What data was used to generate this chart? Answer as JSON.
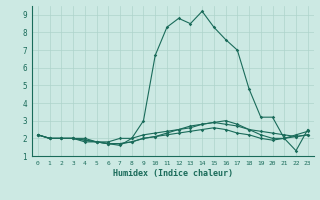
{
  "xlabel": "Humidex (Indice chaleur)",
  "ylabel": "",
  "bg_color": "#cce9e3",
  "grid_color": "#aed4cc",
  "line_color": "#1a6b5a",
  "xlim": [
    -0.5,
    23.5
  ],
  "ylim": [
    1,
    9.5
  ],
  "yticks": [
    1,
    2,
    3,
    4,
    5,
    6,
    7,
    8,
    9
  ],
  "xticks": [
    0,
    1,
    2,
    3,
    4,
    5,
    6,
    7,
    8,
    9,
    10,
    11,
    12,
    13,
    14,
    15,
    16,
    17,
    18,
    19,
    20,
    21,
    22,
    23
  ],
  "series": [
    [
      2.2,
      2.0,
      2.0,
      2.0,
      1.8,
      1.8,
      1.7,
      1.6,
      2.0,
      3.0,
      6.7,
      8.3,
      8.8,
      8.5,
      9.2,
      8.3,
      7.6,
      7.0,
      4.8,
      3.2,
      3.2,
      2.0,
      1.3,
      2.5
    ],
    [
      2.2,
      2.0,
      2.0,
      2.0,
      2.0,
      1.8,
      1.8,
      2.0,
      2.0,
      2.2,
      2.3,
      2.4,
      2.5,
      2.7,
      2.8,
      2.9,
      2.8,
      2.7,
      2.5,
      2.4,
      2.3,
      2.2,
      2.1,
      2.2
    ],
    [
      2.2,
      2.0,
      2.0,
      2.0,
      1.9,
      1.8,
      1.7,
      1.7,
      1.8,
      2.0,
      2.1,
      2.2,
      2.3,
      2.4,
      2.5,
      2.6,
      2.5,
      2.3,
      2.2,
      2.0,
      1.9,
      2.0,
      2.1,
      2.2
    ],
    [
      2.2,
      2.0,
      2.0,
      2.0,
      1.9,
      1.8,
      1.7,
      1.7,
      1.8,
      2.0,
      2.1,
      2.3,
      2.5,
      2.6,
      2.8,
      2.9,
      3.0,
      2.8,
      2.5,
      2.2,
      2.0,
      2.0,
      2.2,
      2.4
    ]
  ]
}
